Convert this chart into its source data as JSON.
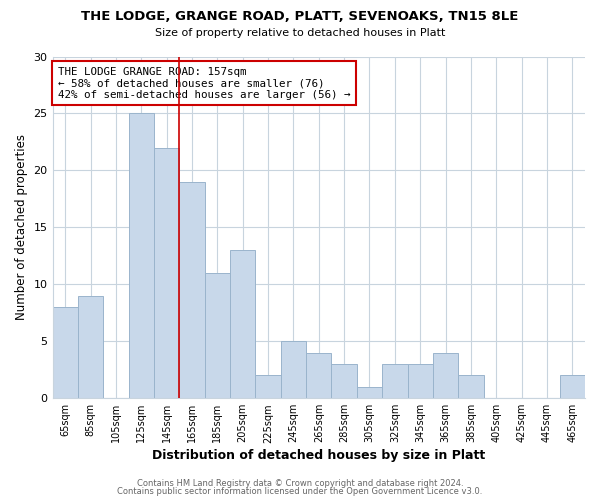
{
  "title": "THE LODGE, GRANGE ROAD, PLATT, SEVENOAKS, TN15 8LE",
  "subtitle": "Size of property relative to detached houses in Platt",
  "xlabel": "Distribution of detached houses by size in Platt",
  "ylabel": "Number of detached properties",
  "bar_color": "#c8d8ea",
  "bar_edgecolor": "#9ab4cc",
  "bin_labels": [
    "65sqm",
    "85sqm",
    "105sqm",
    "125sqm",
    "145sqm",
    "165sqm",
    "185sqm",
    "205sqm",
    "225sqm",
    "245sqm",
    "265sqm",
    "285sqm",
    "305sqm",
    "325sqm",
    "345sqm",
    "365sqm",
    "385sqm",
    "405sqm",
    "425sqm",
    "445sqm",
    "465sqm"
  ],
  "values": [
    8,
    9,
    0,
    25,
    22,
    19,
    11,
    13,
    2,
    5,
    4,
    3,
    1,
    3,
    3,
    4,
    2,
    0,
    0,
    0,
    2
  ],
  "vline_x": 4.5,
  "vline_color": "#cc0000",
  "annotation_line1": "THE LODGE GRANGE ROAD: 157sqm",
  "annotation_line2": "← 58% of detached houses are smaller (76)",
  "annotation_line3": "42% of semi-detached houses are larger (56) →",
  "annotation_box_color": "#ffffff",
  "annotation_box_edgecolor": "#cc0000",
  "ylim": [
    0,
    30
  ],
  "yticks": [
    0,
    5,
    10,
    15,
    20,
    25,
    30
  ],
  "footer1": "Contains HM Land Registry data © Crown copyright and database right 2024.",
  "footer2": "Contains public sector information licensed under the Open Government Licence v3.0.",
  "background_color": "#ffffff",
  "grid_color": "#c8d4de"
}
